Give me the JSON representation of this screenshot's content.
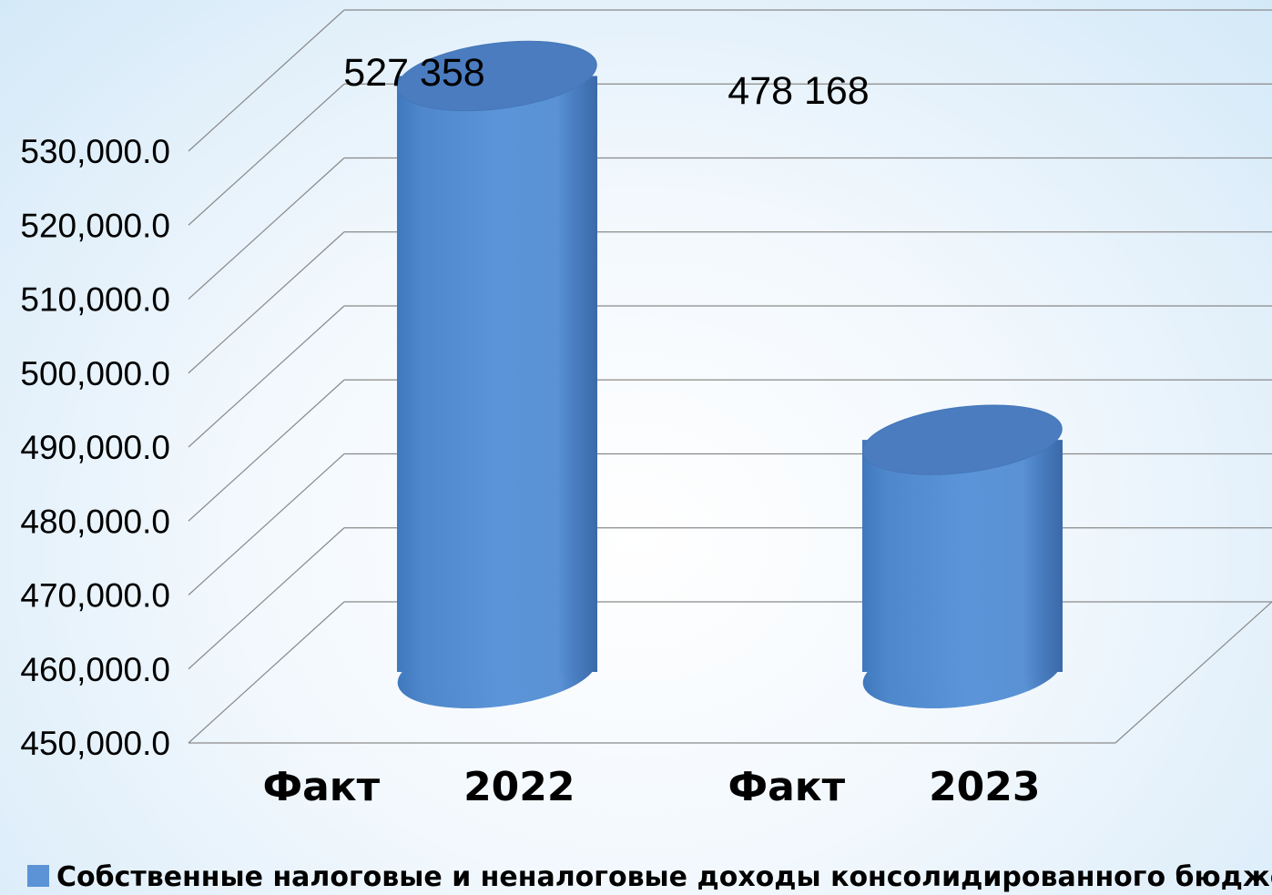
{
  "chart_data": {
    "type": "bar",
    "categories": [
      "Факт      2022",
      "Факт      2023"
    ],
    "series": [
      {
        "name": "Собственные налоговые и неналоговые доходы консолидированного бюджета",
        "values": [
          527358,
          478168
        ],
        "labels": [
          "527 358",
          "478 168"
        ],
        "color": "#5b93d6"
      }
    ],
    "ylim": [
      450000,
      530000
    ],
    "yticks": [
      450000,
      460000,
      470000,
      480000,
      490000,
      500000,
      510000,
      520000,
      530000
    ],
    "ytick_labels": [
      "450,000.0",
      "460,000.0",
      "470,000.0",
      "480,000.0",
      "490,000.0",
      "500,000.0",
      "510,000.0",
      "520,000.0",
      "530,000.0"
    ],
    "grid": true,
    "legend_position": "bottom",
    "style": "3d-cylinder",
    "title": "",
    "xlabel": "",
    "ylabel": ""
  }
}
